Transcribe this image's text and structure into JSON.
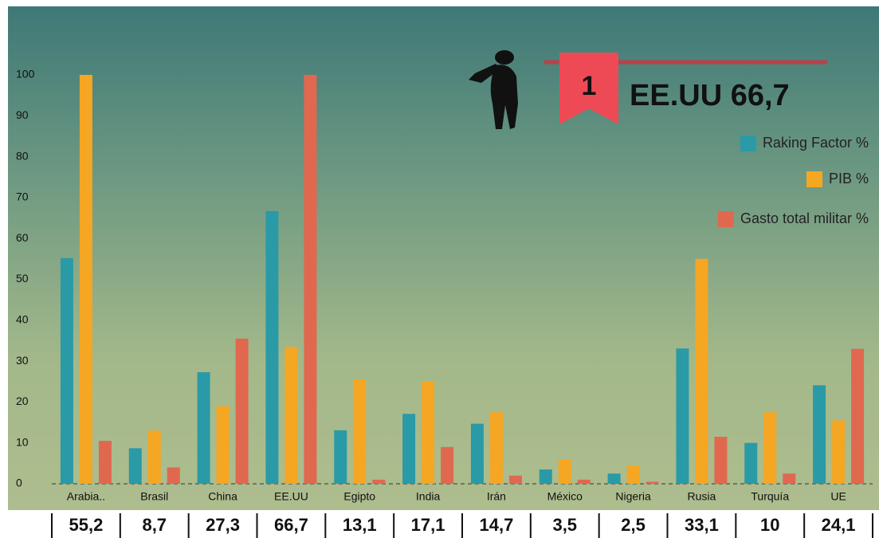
{
  "chart_data": {
    "type": "bar",
    "categories": [
      "Arabia..",
      "Brasil",
      "China",
      "EE.UU",
      "Egipto",
      "India",
      "Irán",
      "México",
      "Nigeria",
      "Rusia",
      "Turquía",
      "UE"
    ],
    "series": [
      {
        "name": "Raking Factor %",
        "color": "#2a9aa6",
        "values": [
          55.2,
          8.7,
          27.3,
          66.7,
          13.1,
          17.1,
          14.7,
          3.5,
          2.5,
          33.1,
          10,
          24.1
        ],
        "value_labels": [
          "55,2",
          "8,7",
          "27,3",
          "66,7",
          "13,1",
          "17,1",
          "14,7",
          "3,5",
          "2,5",
          "33,1",
          "10",
          "24,1"
        ]
      },
      {
        "name": "PIB %",
        "color": "#f5a623",
        "values": [
          100,
          13,
          19,
          33.5,
          25.5,
          25,
          17.5,
          6,
          4.5,
          55,
          17.5,
          15.5
        ]
      },
      {
        "name": "Gasto total militar %",
        "color": "#e0684f",
        "values": [
          10.5,
          4,
          35.5,
          100,
          1,
          9,
          2,
          1,
          0.5,
          11.5,
          2.5,
          33
        ]
      }
    ],
    "ylim": [
      0,
      100
    ],
    "yticks": [
      0,
      10,
      20,
      30,
      40,
      50,
      60,
      70,
      80,
      90,
      100
    ],
    "grid": false,
    "legend": "upper right",
    "annotations": [
      "1",
      "EE.UU 66,7"
    ]
  }
}
